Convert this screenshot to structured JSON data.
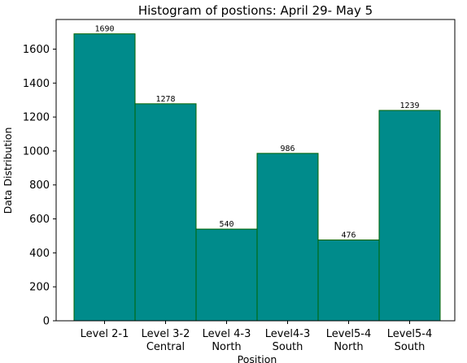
{
  "chart_data": {
    "type": "bar",
    "title": "Histogram of postions: April 29- May 5",
    "xlabel": "Position",
    "ylabel": "Data Distribution",
    "categories": [
      [
        "Level 2-1"
      ],
      [
        "Level 3-2",
        "Central"
      ],
      [
        "Level 4-3",
        "North"
      ],
      [
        "Level4-3",
        "South"
      ],
      [
        "Level5-4",
        "North"
      ],
      [
        "Level5-4",
        "South"
      ]
    ],
    "values": [
      1690,
      1278,
      540,
      986,
      476,
      1239
    ],
    "data_labels": [
      "1690",
      "1278",
      "540",
      "986",
      "476",
      "1239"
    ],
    "ylim": [
      0,
      1774.5
    ],
    "yticks": [
      0,
      200,
      400,
      600,
      800,
      1000,
      1200,
      1400,
      1600
    ],
    "grid": false,
    "legend": "none",
    "bar_color": "#008b8b",
    "bar_edge_color": "#006400"
  }
}
